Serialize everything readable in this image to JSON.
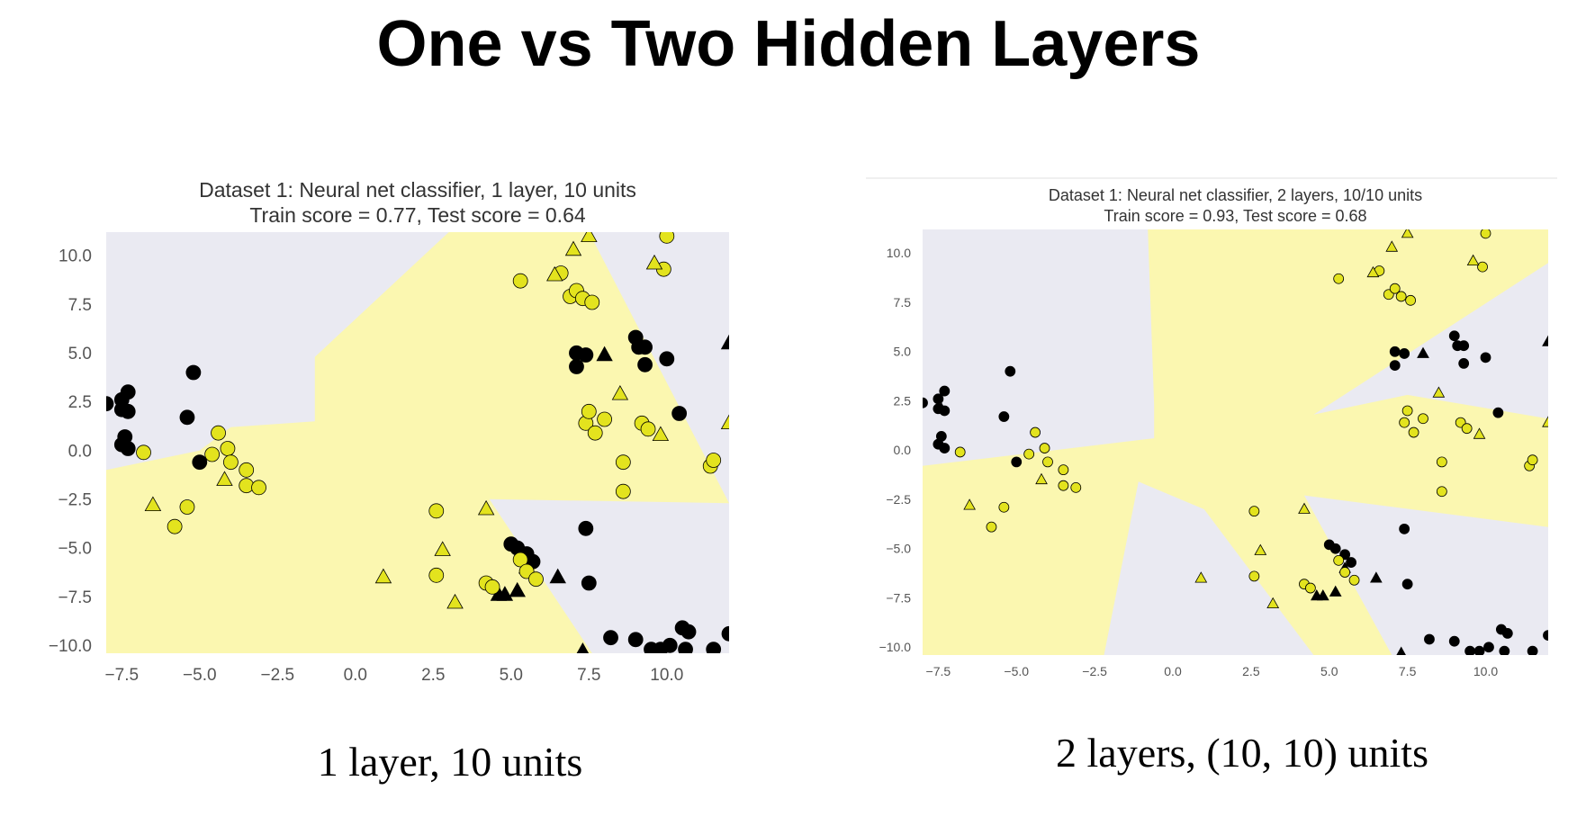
{
  "slide": {
    "title": "One vs Two Hidden Layers",
    "caption_left": "1 layer, 10 units",
    "caption_right": "2 layers, (10, 10) units"
  },
  "colors": {
    "region_class0": "#eaeaf2",
    "region_class1": "#fbf7b0",
    "point_class0": "#000000",
    "point_class1": "#e3e31e",
    "point_edge": "#000000",
    "tick_text": "#555555",
    "title_text": "#333333"
  },
  "chart_data": [
    {
      "type": "scatter",
      "title": "Dataset 1: Neural net classifier, 1 layer, 10 units",
      "subtitle": "Train score = 0.77, Test score = 0.64",
      "xlim": [
        -8,
        12
      ],
      "ylim": [
        -10.4,
        11.2
      ],
      "xticks": [
        "−7.5",
        "−5.0",
        "−2.5",
        "0.0",
        "2.5",
        "5.0",
        "7.5",
        "10.0"
      ],
      "yticks": [
        "10.0",
        "7.5",
        "5.0",
        "2.5",
        "0.0",
        "−2.5",
        "−5.0",
        "−7.5",
        "−10.0"
      ],
      "grid": false,
      "regions": {
        "class1": [
          [
            [
              -8,
              -1.0
            ],
            [
              -5,
              0
            ],
            [
              -4,
              1.2
            ],
            [
              -1.3,
              1.5
            ],
            [
              -1.3,
              4.8
            ],
            [
              3,
              11.2
            ],
            [
              7.5,
              11.2
            ],
            [
              12,
              -2.7
            ],
            [
              4.3,
              -2.5
            ],
            [
              7.6,
              -10.4
            ],
            [
              -8,
              -10.4
            ]
          ]
        ]
      },
      "series": [
        {
          "class": 0,
          "marker": "circle",
          "points": [
            [
              -8,
              2.4
            ],
            [
              -7.5,
              2.1
            ],
            [
              -7.3,
              2.0
            ],
            [
              -7.3,
              3.0
            ],
            [
              -7.5,
              2.6
            ],
            [
              -7.4,
              0.7
            ],
            [
              -7.5,
              0.3
            ],
            [
              -7.3,
              0.1
            ],
            [
              -5.2,
              4.0
            ],
            [
              -5.4,
              1.7
            ],
            [
              -5.0,
              -0.6
            ],
            [
              7.1,
              5.0
            ],
            [
              7.1,
              4.3
            ],
            [
              7.4,
              4.9
            ],
            [
              9.0,
              5.8
            ],
            [
              9.1,
              5.3
            ],
            [
              9.3,
              5.3
            ],
            [
              9.3,
              4.4
            ],
            [
              10.0,
              4.7
            ],
            [
              10.4,
              1.9
            ],
            [
              5.0,
              -4.8
            ],
            [
              5.2,
              -5.0
            ],
            [
              5.5,
              -5.3
            ],
            [
              5.7,
              -5.7
            ],
            [
              7.4,
              -4.0
            ],
            [
              7.5,
              -6.8
            ],
            [
              8.2,
              -9.6
            ],
            [
              9.0,
              -9.7
            ],
            [
              9.5,
              -10.2
            ],
            [
              9.8,
              -10.2
            ],
            [
              10.1,
              -10.0
            ],
            [
              10.5,
              -9.1
            ],
            [
              10.7,
              -9.3
            ],
            [
              10.6,
              -10.2
            ],
            [
              11.5,
              -10.2
            ],
            [
              12,
              -9.4
            ]
          ]
        },
        {
          "class": 0,
          "marker": "triangle",
          "points": [
            [
              -7.4,
              2.1
            ],
            [
              8.0,
              4.9
            ],
            [
              4.6,
              -7.4
            ],
            [
              4.8,
              -7.4
            ],
            [
              5.2,
              -7.2
            ],
            [
              5.5,
              -6.0
            ],
            [
              6.5,
              -6.5
            ],
            [
              7.3,
              -10.3
            ],
            [
              12,
              5.5
            ]
          ]
        },
        {
          "class": 1,
          "marker": "circle",
          "points": [
            [
              -6.8,
              -0.1
            ],
            [
              -5.8,
              -3.9
            ],
            [
              -5.4,
              -2.9
            ],
            [
              -4.6,
              -0.2
            ],
            [
              -4.4,
              0.9
            ],
            [
              -4.1,
              0.1
            ],
            [
              -4.0,
              -0.6
            ],
            [
              -3.5,
              -1.0
            ],
            [
              -3.5,
              -1.8
            ],
            [
              -3.1,
              -1.9
            ],
            [
              5.3,
              8.7
            ],
            [
              6.6,
              9.1
            ],
            [
              6.9,
              7.9
            ],
            [
              7.1,
              8.2
            ],
            [
              7.3,
              7.8
            ],
            [
              7.6,
              7.6
            ],
            [
              7.4,
              1.4
            ],
            [
              7.5,
              2.0
            ],
            [
              7.7,
              0.9
            ],
            [
              8.0,
              1.6
            ],
            [
              8.6,
              -0.6
            ],
            [
              8.6,
              -2.1
            ],
            [
              9.2,
              1.4
            ],
            [
              9.4,
              1.1
            ],
            [
              9.9,
              9.3
            ],
            [
              10.0,
              11.0
            ],
            [
              11.4,
              -0.8
            ],
            [
              11.5,
              -0.5
            ],
            [
              2.6,
              -3.1
            ],
            [
              2.6,
              -6.4
            ],
            [
              4.2,
              -6.8
            ],
            [
              4.4,
              -7.0
            ],
            [
              5.3,
              -5.6
            ],
            [
              5.5,
              -6.2
            ],
            [
              5.8,
              -6.6
            ]
          ]
        },
        {
          "class": 1,
          "marker": "triangle",
          "points": [
            [
              -6.5,
              -2.8
            ],
            [
              -4.2,
              -1.5
            ],
            [
              0.9,
              -6.5
            ],
            [
              2.8,
              -5.1
            ],
            [
              3.2,
              -7.8
            ],
            [
              4.2,
              -3.0
            ],
            [
              6.4,
              9.0
            ],
            [
              7.0,
              10.3
            ],
            [
              7.5,
              11.0
            ],
            [
              8.5,
              2.9
            ],
            [
              9.6,
              9.6
            ],
            [
              9.8,
              0.8
            ],
            [
              12,
              1.4
            ]
          ]
        }
      ]
    },
    {
      "type": "scatter",
      "title": "Dataset 1: Neural net classifier, 2 layers, 10/10 units",
      "subtitle": "Train score = 0.93, Test score = 0.68",
      "xlim": [
        -8,
        12
      ],
      "ylim": [
        -10.4,
        11.2
      ],
      "xticks": [
        "−7.5",
        "−5.0",
        "−2.5",
        "0.0",
        "2.5",
        "5.0",
        "7.5",
        "10.0"
      ],
      "yticks": [
        "10.0",
        "7.5",
        "5.0",
        "2.5",
        "0.0",
        "−2.5",
        "−5.0",
        "−7.5",
        "−10.0"
      ],
      "grid": false,
      "regions": {
        "class1": [
          [
            [
              -8,
              -0.8
            ],
            [
              -0.6,
              0.6
            ],
            [
              -0.6,
              2.3
            ],
            [
              -0.8,
              11.2
            ],
            [
              12,
              11.2
            ],
            [
              12,
              9.5
            ],
            [
              4.5,
              1.8
            ],
            [
              7.5,
              2.8
            ],
            [
              12,
              1.6
            ],
            [
              12,
              -3.9
            ],
            [
              4.2,
              -2.3
            ],
            [
              7.0,
              -10.4
            ],
            [
              4.5,
              -10.4
            ],
            [
              1.0,
              -3.0
            ],
            [
              -1.1,
              -1.6
            ],
            [
              -2.2,
              -10.4
            ],
            [
              -8,
              -10.4
            ]
          ]
        ]
      },
      "series": [
        {
          "class": 0,
          "marker": "circle",
          "points": [
            [
              -8,
              2.4
            ],
            [
              -7.5,
              2.1
            ],
            [
              -7.3,
              2.0
            ],
            [
              -7.3,
              3.0
            ],
            [
              -7.5,
              2.6
            ],
            [
              -7.4,
              0.7
            ],
            [
              -7.5,
              0.3
            ],
            [
              -7.3,
              0.1
            ],
            [
              -5.2,
              4.0
            ],
            [
              -5.4,
              1.7
            ],
            [
              -5.0,
              -0.6
            ],
            [
              7.1,
              5.0
            ],
            [
              7.1,
              4.3
            ],
            [
              7.4,
              4.9
            ],
            [
              9.0,
              5.8
            ],
            [
              9.1,
              5.3
            ],
            [
              9.3,
              5.3
            ],
            [
              9.3,
              4.4
            ],
            [
              10.0,
              4.7
            ],
            [
              10.4,
              1.9
            ],
            [
              5.0,
              -4.8
            ],
            [
              5.2,
              -5.0
            ],
            [
              5.5,
              -5.3
            ],
            [
              5.7,
              -5.7
            ],
            [
              7.4,
              -4.0
            ],
            [
              7.5,
              -6.8
            ],
            [
              8.2,
              -9.6
            ],
            [
              9.0,
              -9.7
            ],
            [
              9.5,
              -10.2
            ],
            [
              9.8,
              -10.2
            ],
            [
              10.1,
              -10.0
            ],
            [
              10.5,
              -9.1
            ],
            [
              10.7,
              -9.3
            ],
            [
              10.6,
              -10.2
            ],
            [
              11.5,
              -10.2
            ],
            [
              12,
              -9.4
            ]
          ]
        },
        {
          "class": 0,
          "marker": "triangle",
          "points": [
            [
              -7.4,
              2.1
            ],
            [
              8.0,
              4.9
            ],
            [
              4.6,
              -7.4
            ],
            [
              4.8,
              -7.4
            ],
            [
              5.2,
              -7.2
            ],
            [
              5.5,
              -6.0
            ],
            [
              6.5,
              -6.5
            ],
            [
              7.3,
              -10.3
            ],
            [
              12,
              5.5
            ]
          ]
        },
        {
          "class": 1,
          "marker": "circle",
          "points": [
            [
              -6.8,
              -0.1
            ],
            [
              -5.8,
              -3.9
            ],
            [
              -5.4,
              -2.9
            ],
            [
              -4.6,
              -0.2
            ],
            [
              -4.4,
              0.9
            ],
            [
              -4.1,
              0.1
            ],
            [
              -4.0,
              -0.6
            ],
            [
              -3.5,
              -1.0
            ],
            [
              -3.5,
              -1.8
            ],
            [
              -3.1,
              -1.9
            ],
            [
              5.3,
              8.7
            ],
            [
              6.6,
              9.1
            ],
            [
              6.9,
              7.9
            ],
            [
              7.1,
              8.2
            ],
            [
              7.3,
              7.8
            ],
            [
              7.6,
              7.6
            ],
            [
              7.4,
              1.4
            ],
            [
              7.5,
              2.0
            ],
            [
              7.7,
              0.9
            ],
            [
              8.0,
              1.6
            ],
            [
              8.6,
              -0.6
            ],
            [
              8.6,
              -2.1
            ],
            [
              9.2,
              1.4
            ],
            [
              9.4,
              1.1
            ],
            [
              9.9,
              9.3
            ],
            [
              10.0,
              11.0
            ],
            [
              11.4,
              -0.8
            ],
            [
              11.5,
              -0.5
            ],
            [
              2.6,
              -3.1
            ],
            [
              2.6,
              -6.4
            ],
            [
              4.2,
              -6.8
            ],
            [
              4.4,
              -7.0
            ],
            [
              5.3,
              -5.6
            ],
            [
              5.5,
              -6.2
            ],
            [
              5.8,
              -6.6
            ]
          ]
        },
        {
          "class": 1,
          "marker": "triangle",
          "points": [
            [
              -6.5,
              -2.8
            ],
            [
              -4.2,
              -1.5
            ],
            [
              0.9,
              -6.5
            ],
            [
              2.8,
              -5.1
            ],
            [
              3.2,
              -7.8
            ],
            [
              4.2,
              -3.0
            ],
            [
              6.4,
              9.0
            ],
            [
              7.0,
              10.3
            ],
            [
              7.5,
              11.0
            ],
            [
              8.5,
              2.9
            ],
            [
              9.6,
              9.6
            ],
            [
              9.8,
              0.8
            ],
            [
              12,
              1.4
            ]
          ]
        }
      ]
    }
  ]
}
